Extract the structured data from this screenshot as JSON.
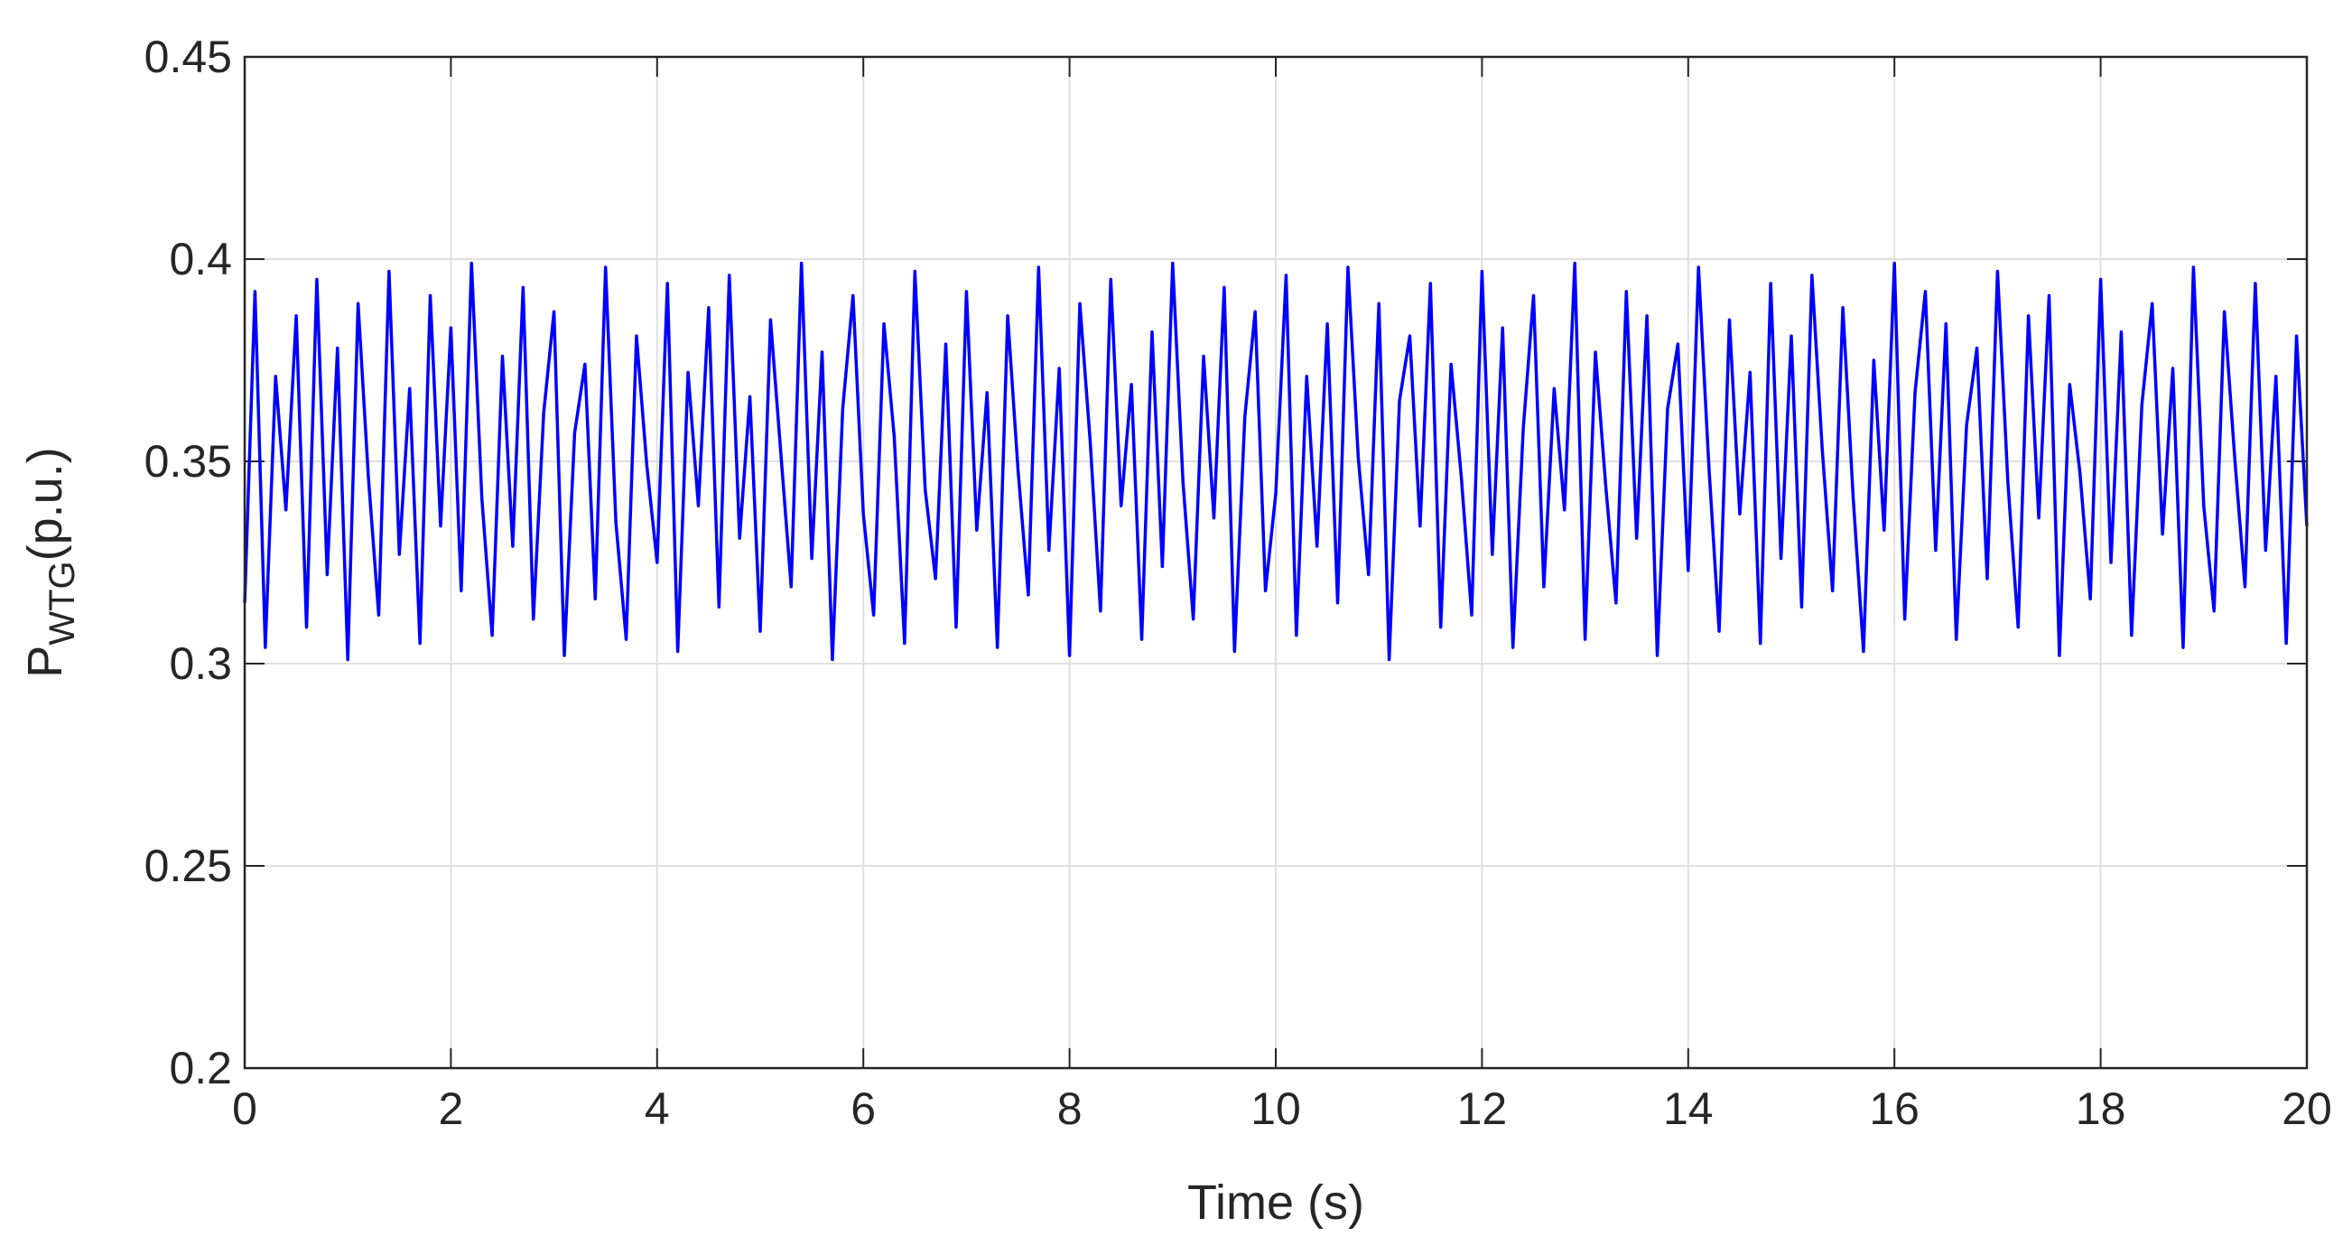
{
  "chart_data": {
    "type": "line",
    "xlabel": "Time (s)",
    "ylabel": {
      "main": "P",
      "sub": "WTG",
      "suffix": "(p.u.)"
    },
    "grid": true,
    "xlim": [
      0,
      20
    ],
    "xticks": [
      0,
      2,
      4,
      6,
      8,
      10,
      12,
      14,
      16,
      18,
      20
    ],
    "ylim": [
      0.2,
      0.45
    ],
    "yticks": [
      0.2,
      0.25,
      0.3,
      0.35,
      0.4,
      0.45
    ],
    "x": [
      0,
      0.1,
      0.2,
      0.3,
      0.4,
      0.5,
      0.6,
      0.7,
      0.8,
      0.9,
      1,
      1.1,
      1.2,
      1.3,
      1.4,
      1.5,
      1.6,
      1.7,
      1.8,
      1.9,
      2,
      2.1,
      2.2,
      2.3,
      2.4,
      2.5,
      2.6,
      2.7,
      2.8,
      2.9,
      3,
      3.1,
      3.2,
      3.3,
      3.4,
      3.5,
      3.6,
      3.7,
      3.8,
      3.9,
      4,
      4.1,
      4.2,
      4.3,
      4.4,
      4.5,
      4.6,
      4.7,
      4.8,
      4.9,
      5,
      5.1,
      5.2,
      5.3,
      5.4,
      5.5,
      5.6,
      5.7,
      5.8,
      5.9,
      6,
      6.1,
      6.2,
      6.3,
      6.4,
      6.5,
      6.6,
      6.7,
      6.8,
      6.9,
      7,
      7.1,
      7.2,
      7.3,
      7.4,
      7.5,
      7.6,
      7.7,
      7.8,
      7.9,
      8,
      8.1,
      8.2,
      8.3,
      8.4,
      8.5,
      8.6,
      8.7,
      8.8,
      8.9,
      9,
      9.1,
      9.2,
      9.3,
      9.4,
      9.5,
      9.6,
      9.7,
      9.8,
      9.9,
      10,
      10.1,
      10.2,
      10.3,
      10.4,
      10.5,
      10.6,
      10.7,
      10.8,
      10.9,
      11,
      11.1,
      11.2,
      11.3,
      11.4,
      11.5,
      11.6,
      11.7,
      11.8,
      11.9,
      12,
      12.1,
      12.2,
      12.3,
      12.4,
      12.5,
      12.6,
      12.7,
      12.8,
      12.9,
      13,
      13.1,
      13.2,
      13.3,
      13.4,
      13.5,
      13.6,
      13.7,
      13.8,
      13.9,
      14,
      14.1,
      14.2,
      14.3,
      14.4,
      14.5,
      14.6,
      14.7,
      14.8,
      14.9,
      15,
      15.1,
      15.2,
      15.3,
      15.4,
      15.5,
      15.6,
      15.7,
      15.8,
      15.9,
      16,
      16.1,
      16.2,
      16.3,
      16.4,
      16.5,
      16.6,
      16.7,
      16.8,
      16.9,
      17,
      17.1,
      17.2,
      17.3,
      17.4,
      17.5,
      17.6,
      17.7,
      17.8,
      17.9,
      18,
      18.1,
      18.2,
      18.3,
      18.4,
      18.5,
      18.6,
      18.7,
      18.8,
      18.9,
      19,
      19.1,
      19.2,
      19.3,
      19.4,
      19.5,
      19.6,
      19.7,
      19.8,
      19.9,
      20
    ],
    "series": [
      {
        "color": "#0000ff",
        "values": [
          0.315,
          0.392,
          0.304,
          0.371,
          0.338,
          0.386,
          0.309,
          0.395,
          0.322,
          0.378,
          0.301,
          0.389,
          0.346,
          0.312,
          0.397,
          0.327,
          0.368,
          0.305,
          0.391,
          0.334,
          0.383,
          0.318,
          0.399,
          0.341,
          0.307,
          0.376,
          0.329,
          0.393,
          0.311,
          0.362,
          0.387,
          0.302,
          0.357,
          0.374,
          0.316,
          0.398,
          0.335,
          0.306,
          0.381,
          0.349,
          0.325,
          0.394,
          0.303,
          0.372,
          0.339,
          0.388,
          0.314,
          0.396,
          0.331,
          0.366,
          0.308,
          0.385,
          0.352,
          0.319,
          0.399,
          0.326,
          0.377,
          0.301,
          0.363,
          0.391,
          0.337,
          0.312,
          0.384,
          0.356,
          0.305,
          0.397,
          0.343,
          0.321,
          0.379,
          0.309,
          0.392,
          0.333,
          0.367,
          0.304,
          0.386,
          0.348,
          0.317,
          0.398,
          0.328,
          0.373,
          0.302,
          0.389,
          0.355,
          0.313,
          0.395,
          0.339,
          0.369,
          0.306,
          0.382,
          0.324,
          0.399,
          0.345,
          0.311,
          0.376,
          0.336,
          0.393,
          0.303,
          0.361,
          0.387,
          0.318,
          0.342,
          0.396,
          0.307,
          0.371,
          0.329,
          0.384,
          0.315,
          0.398,
          0.351,
          0.322,
          0.389,
          0.301,
          0.365,
          0.381,
          0.334,
          0.394,
          0.309,
          0.374,
          0.346,
          0.312,
          0.397,
          0.327,
          0.383,
          0.304,
          0.358,
          0.391,
          0.319,
          0.368,
          0.338,
          0.399,
          0.306,
          0.377,
          0.344,
          0.315,
          0.392,
          0.331,
          0.386,
          0.302,
          0.363,
          0.379,
          0.323,
          0.398,
          0.349,
          0.308,
          0.385,
          0.337,
          0.372,
          0.305,
          0.394,
          0.326,
          0.381,
          0.314,
          0.396,
          0.353,
          0.318,
          0.388,
          0.341,
          0.303,
          0.375,
          0.333,
          0.399,
          0.311,
          0.367,
          0.392,
          0.328,
          0.384,
          0.306,
          0.359,
          0.378,
          0.321,
          0.397,
          0.345,
          0.309,
          0.386,
          0.336,
          0.391,
          0.302,
          0.369,
          0.347,
          0.316,
          0.395,
          0.325,
          0.382,
          0.307,
          0.364,
          0.389,
          0.332,
          0.373,
          0.304,
          0.398,
          0.339,
          0.313,
          0.387,
          0.351,
          0.319,
          0.394,
          0.328,
          0.371,
          0.305,
          0.381,
          0.334
        ]
      }
    ]
  }
}
